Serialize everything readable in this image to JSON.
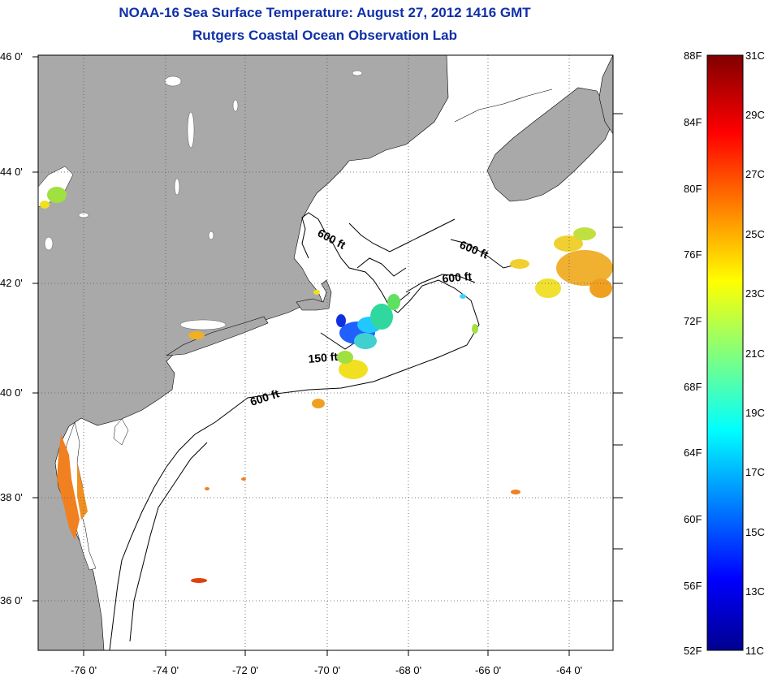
{
  "title": "NOAA-16 Sea Surface Temperature:  August 27, 2012 1416 GMT",
  "subtitle": "Rutgers Coastal Ocean Observation Lab",
  "lat_ticks": [
    "46 0'",
    "44 0'",
    "42 0'",
    "40 0'",
    "38 0'",
    "36 0'"
  ],
  "lon_ticks": [
    "-76 0'",
    "-74 0'",
    "-72 0'",
    "-70 0'",
    "-68 0'",
    "-66 0'",
    "-64 0'"
  ],
  "contour_labels": [
    "600 ft",
    "600 ft",
    "600 ft",
    "150 ft",
    "600 ft"
  ],
  "colorbar": {
    "fahrenheit": [
      "88F",
      "84F",
      "80F",
      "76F",
      "72F",
      "68F",
      "64F",
      "60F",
      "56F",
      "52F"
    ],
    "celsius": [
      "31C",
      "29C",
      "27C",
      "25C",
      "23C",
      "21C",
      "19C",
      "17C",
      "15C",
      "13C",
      "11C"
    ]
  },
  "colors": {
    "land": "#a9a9a9",
    "title": "#1030a8",
    "water": "#ffffff"
  }
}
